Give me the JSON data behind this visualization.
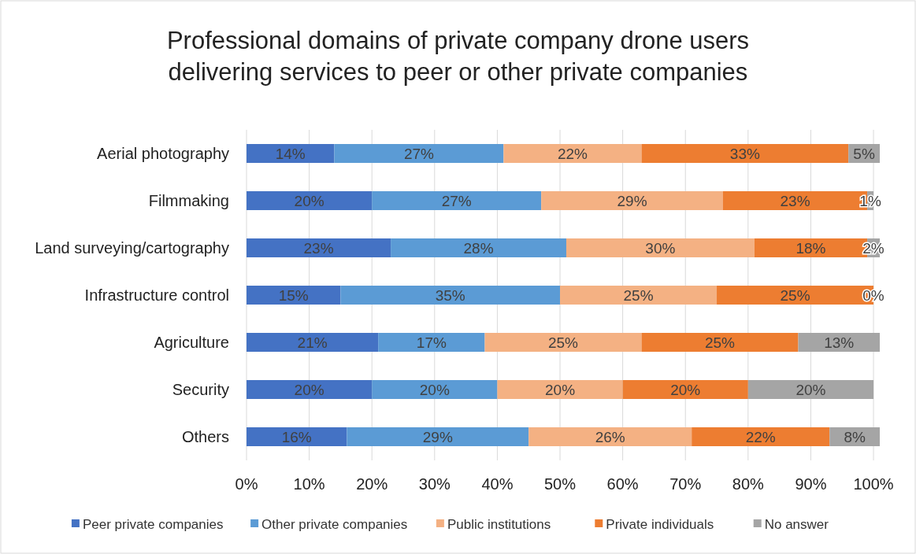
{
  "chart_data": {
    "type": "bar",
    "orientation": "horizontal",
    "stacked": true,
    "title": "Professional domains of private company drone users delivering services to peer or other private companies",
    "categories": [
      "Aerial photography",
      "Filmmaking",
      "Land surveying/cartography",
      "Infrastructure control",
      "Agriculture",
      "Security",
      "Others"
    ],
    "series": [
      {
        "name": "Peer private companies",
        "color": "#4472c4",
        "values": [
          14,
          20,
          23,
          15,
          21,
          20,
          16
        ],
        "value_labels": [
          "14%",
          "20%",
          "23%",
          "15%",
          "21%",
          "20%",
          "16%"
        ]
      },
      {
        "name": "Other private companies",
        "color": "#5b9bd5",
        "values": [
          27,
          27,
          28,
          35,
          17,
          20,
          29
        ],
        "value_labels": [
          "27%",
          "27%",
          "28%",
          "35%",
          "17%",
          "20%",
          "29%"
        ]
      },
      {
        "name": "Public institutions",
        "color": "#f4b183",
        "values": [
          22,
          29,
          30,
          25,
          25,
          20,
          26
        ],
        "value_labels": [
          "22%",
          "29%",
          "30%",
          "25%",
          "25%",
          "20%",
          "26%"
        ]
      },
      {
        "name": "Private individuals",
        "color": "#ed7d31",
        "values": [
          33,
          23,
          18,
          25,
          25,
          20,
          22
        ],
        "value_labels": [
          "33%",
          "23%",
          "18%",
          "25%",
          "25%",
          "20%",
          "22%"
        ]
      },
      {
        "name": "No answer",
        "color": "#a5a5a5",
        "values": [
          5,
          1,
          2,
          0,
          13,
          20,
          8
        ],
        "value_labels": [
          "5%",
          "1%",
          "2%",
          "0%",
          "13%",
          "20%",
          "8%"
        ]
      }
    ],
    "xlim": [
      0,
      101
    ],
    "xticks": [
      {
        "value": 0,
        "label": "0%"
      },
      {
        "value": 10,
        "label": "10%"
      },
      {
        "value": 20,
        "label": "20%"
      },
      {
        "value": 30,
        "label": "30%"
      },
      {
        "value": 40,
        "label": "40%"
      },
      {
        "value": 50,
        "label": "50%"
      },
      {
        "value": 60,
        "label": "60%"
      },
      {
        "value": 70,
        "label": "70%"
      },
      {
        "value": 80,
        "label": "80%"
      },
      {
        "value": 90,
        "label": "90%"
      },
      {
        "value": 100,
        "label": "100%"
      }
    ],
    "grid": "x",
    "legend": "bottom"
  }
}
